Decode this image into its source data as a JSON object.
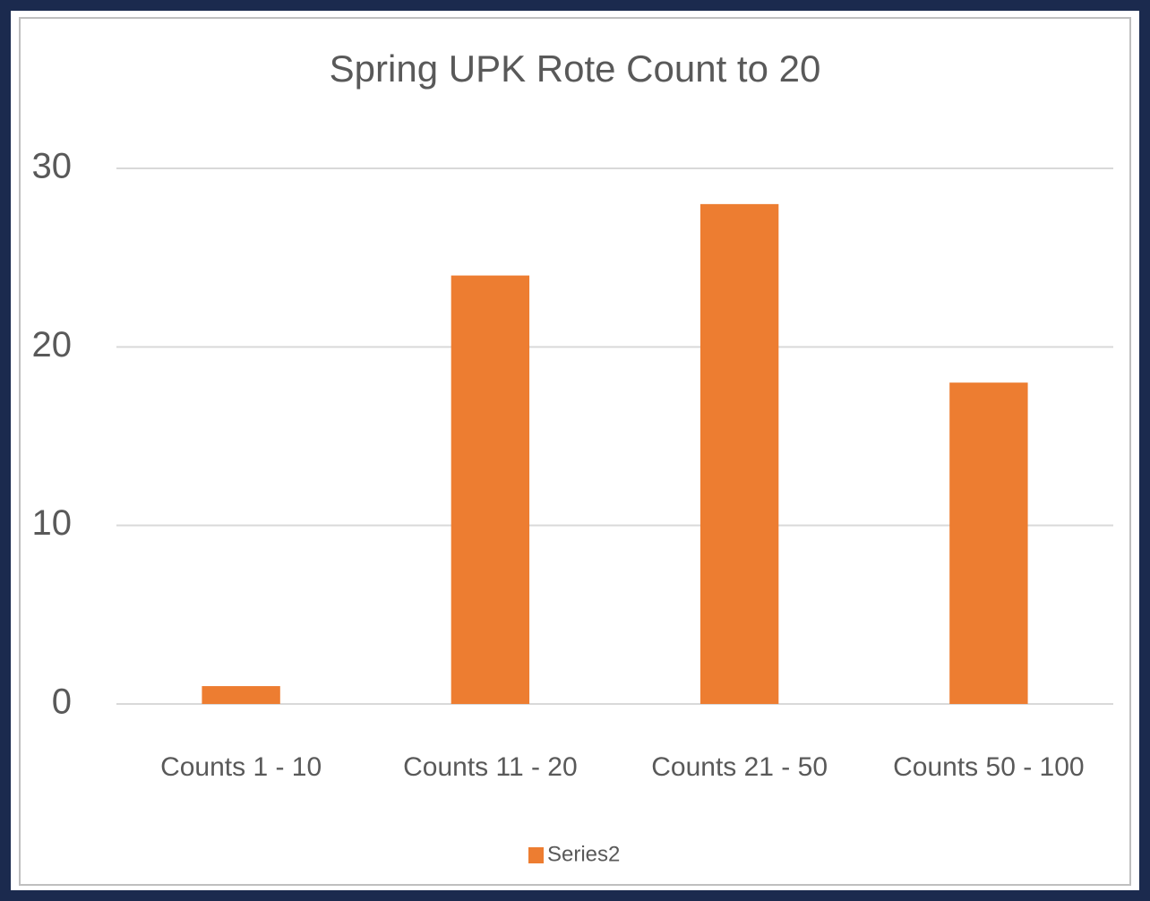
{
  "chart_data": {
    "type": "bar",
    "title": "Spring UPK Rote Count to 20",
    "categories": [
      "Counts 1 - 10",
      "Counts 11 - 20",
      "Counts 21 - 50",
      "Counts 50 - 100"
    ],
    "series": [
      {
        "name": "Series2",
        "color": "#ed7d31",
        "values": [
          1,
          24,
          28,
          18
        ]
      }
    ],
    "ylim": [
      0,
      30
    ],
    "yticks": [
      0,
      10,
      20,
      30
    ],
    "grid": true,
    "legend": "bottom"
  }
}
